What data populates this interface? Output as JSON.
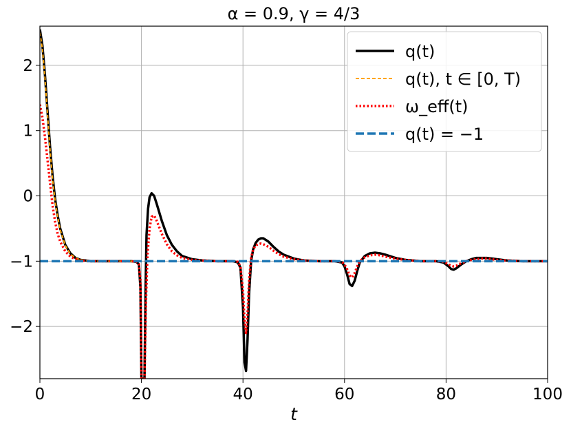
{
  "chart_data": {
    "type": "line",
    "title": "α = 0.9, γ = 4/3",
    "xlabel": "t",
    "ylabel": "",
    "xlim": [
      0,
      100
    ],
    "ylim": [
      -2.8,
      2.6
    ],
    "xticks": [
      0,
      20,
      40,
      60,
      80,
      100
    ],
    "yticks": [
      -2,
      -1,
      0,
      1,
      2
    ],
    "xtick_labels": [
      "0",
      "20",
      "40",
      "60",
      "80",
      "100"
    ],
    "ytick_labels": [
      "−2",
      "−1",
      "0",
      "1",
      "2"
    ],
    "grid": true,
    "legend_position": "top-right",
    "series": [
      {
        "name": "q(t)",
        "color": "#000000",
        "style": "solid",
        "x": [
          0,
          0.5,
          1,
          1.5,
          2,
          2.5,
          3,
          3.5,
          4,
          5,
          6,
          7,
          8,
          9,
          10,
          12,
          14,
          16,
          18,
          19,
          19.5,
          19.8,
          20,
          20.2,
          20.4,
          20.6,
          20.8,
          21,
          21.3,
          21.6,
          22,
          22.5,
          23,
          24,
          25,
          26,
          27,
          28,
          30,
          32,
          35,
          38,
          39,
          39.5,
          40,
          40.3,
          40.6,
          40.9,
          41.2,
          41.6,
          42,
          42.5,
          43,
          43.5,
          44,
          45,
          46,
          47,
          48,
          50,
          52,
          55,
          58,
          59.5,
          60,
          60.5,
          61,
          61.5,
          62,
          62.5,
          63,
          64,
          65,
          66,
          67,
          68,
          70,
          72,
          75,
          78,
          79.5,
          80,
          80.5,
          81,
          81.5,
          82,
          83,
          84,
          85,
          86,
          87,
          88,
          89,
          90,
          92,
          95,
          100
        ],
        "y": [
          2.55,
          2.3,
          1.85,
          1.3,
          0.75,
          0.3,
          -0.05,
          -0.3,
          -0.5,
          -0.75,
          -0.88,
          -0.95,
          -0.98,
          -0.99,
          -1.0,
          -1.0,
          -1.0,
          -1.0,
          -1.0,
          -1.01,
          -1.05,
          -1.4,
          -2.8,
          -2.8,
          -2.8,
          -2.8,
          -1.5,
          -0.6,
          -0.2,
          -0.02,
          0.04,
          0.0,
          -0.12,
          -0.38,
          -0.6,
          -0.75,
          -0.85,
          -0.92,
          -0.97,
          -0.99,
          -1.0,
          -1.0,
          -1.02,
          -1.1,
          -1.7,
          -2.55,
          -2.68,
          -2.2,
          -1.5,
          -1.0,
          -0.82,
          -0.72,
          -0.67,
          -0.65,
          -0.65,
          -0.7,
          -0.78,
          -0.85,
          -0.9,
          -0.96,
          -0.99,
          -1.0,
          -1.0,
          -1.02,
          -1.08,
          -1.2,
          -1.35,
          -1.38,
          -1.3,
          -1.15,
          -1.02,
          -0.92,
          -0.88,
          -0.87,
          -0.88,
          -0.9,
          -0.95,
          -0.98,
          -1.0,
          -1.0,
          -1.02,
          -1.05,
          -1.08,
          -1.12,
          -1.13,
          -1.11,
          -1.05,
          -1.0,
          -0.97,
          -0.95,
          -0.95,
          -0.95,
          -0.96,
          -0.97,
          -0.99,
          -1.0,
          -1.0
        ]
      },
      {
        "name": "q(t),  t ∈ [0, T)",
        "color": "#ffa500",
        "style": "dashed",
        "x": [
          0,
          0.5,
          1,
          1.5,
          2,
          2.5,
          3,
          3.5,
          4,
          5,
          6,
          7,
          8,
          9,
          10,
          12,
          14,
          16,
          18,
          19
        ],
        "y": [
          2.5,
          2.25,
          1.8,
          1.25,
          0.7,
          0.25,
          -0.08,
          -0.32,
          -0.52,
          -0.76,
          -0.89,
          -0.95,
          -0.98,
          -0.99,
          -1.0,
          -1.0,
          -1.0,
          -1.0,
          -1.0,
          -1.0
        ]
      },
      {
        "name": "ω_eff(t)",
        "color": "#ff0000",
        "style": "dotted",
        "x": [
          0,
          0.5,
          1,
          1.5,
          2,
          2.5,
          3,
          3.5,
          4,
          5,
          6,
          7,
          8,
          9,
          10,
          12,
          14,
          16,
          18,
          19,
          19.5,
          19.8,
          20,
          20.3,
          20.6,
          20.9,
          21.2,
          21.6,
          22,
          22.5,
          23,
          24,
          25,
          26,
          27,
          28,
          30,
          32,
          35,
          38,
          39,
          39.5,
          40,
          40.3,
          40.6,
          40.9,
          41.2,
          41.6,
          42,
          42.5,
          43,
          43.5,
          44,
          45,
          46,
          47,
          48,
          50,
          52,
          55,
          58,
          59.5,
          60,
          60.5,
          61,
          61.5,
          62,
          62.5,
          63,
          64,
          65,
          66,
          67,
          68,
          70,
          72,
          75,
          78,
          79.5,
          80,
          80.5,
          81,
          81.5,
          82,
          83,
          84,
          85,
          86,
          87,
          88,
          89,
          90,
          92,
          95,
          100
        ],
        "y": [
          1.4,
          1.2,
          0.9,
          0.55,
          0.2,
          -0.15,
          -0.4,
          -0.58,
          -0.7,
          -0.85,
          -0.93,
          -0.97,
          -0.99,
          -0.995,
          -1.0,
          -1.0,
          -1.0,
          -1.0,
          -1.0,
          -1.01,
          -1.04,
          -1.3,
          -2.8,
          -2.8,
          -2.8,
          -1.6,
          -0.9,
          -0.5,
          -0.32,
          -0.3,
          -0.38,
          -0.58,
          -0.74,
          -0.85,
          -0.91,
          -0.95,
          -0.98,
          -0.99,
          -1.0,
          -1.0,
          -1.01,
          -1.08,
          -1.45,
          -1.9,
          -2.1,
          -1.8,
          -1.3,
          -0.95,
          -0.82,
          -0.76,
          -0.74,
          -0.73,
          -0.74,
          -0.78,
          -0.84,
          -0.89,
          -0.93,
          -0.97,
          -0.99,
          -1.0,
          -1.0,
          -1.01,
          -1.05,
          -1.12,
          -1.22,
          -1.25,
          -1.18,
          -1.08,
          -1.0,
          -0.94,
          -0.91,
          -0.9,
          -0.91,
          -0.93,
          -0.96,
          -0.98,
          -1.0,
          -1.0,
          -1.01,
          -1.03,
          -1.05,
          -1.07,
          -1.08,
          -1.07,
          -1.03,
          -1.0,
          -0.98,
          -0.97,
          -0.96,
          -0.96,
          -0.97,
          -0.98,
          -0.99,
          -1.0,
          -1.0
        ]
      },
      {
        "name": "q(t) = −1",
        "color": "#1f77b4",
        "style": "dashed",
        "x": [
          0,
          100
        ],
        "y": [
          -1,
          -1
        ]
      }
    ]
  }
}
